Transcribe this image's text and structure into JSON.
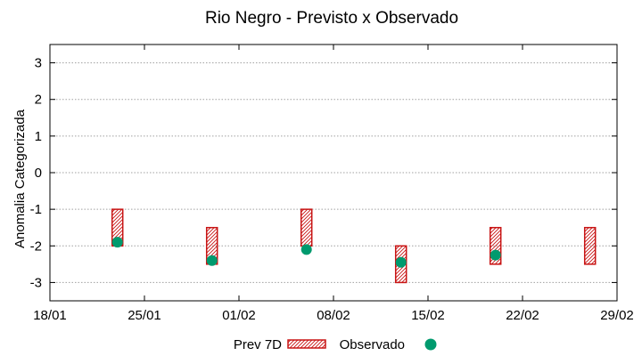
{
  "chart_data": {
    "type": "interval-scatter",
    "title": "Rio Negro - Previsto x Observado",
    "ylabel": "Anomalia Categorizada",
    "xlabel": "",
    "x_ticks": [
      "18/01",
      "25/01",
      "01/02",
      "08/02",
      "15/02",
      "22/02",
      "29/02"
    ],
    "x_range_days": [
      0,
      42
    ],
    "ylim": [
      -3.5,
      3.5
    ],
    "y_ticks": [
      "-3",
      "-2",
      "-1",
      "0",
      "1",
      "2",
      "3"
    ],
    "y_tick_values": [
      -3,
      -2,
      -1,
      0,
      1,
      2,
      3
    ],
    "grid": true,
    "legend": {
      "position": "bottom",
      "forecast_label": "Prev 7D",
      "observed_label": "Observado"
    },
    "series": [
      {
        "name": "Prev 7D",
        "kind": "interval",
        "points": [
          {
            "day": 5,
            "low": -2.0,
            "high": -1.0
          },
          {
            "day": 12,
            "low": -2.5,
            "high": -1.5
          },
          {
            "day": 19,
            "low": -2.0,
            "high": -1.0
          },
          {
            "day": 26,
            "low": -3.0,
            "high": -2.0
          },
          {
            "day": 33,
            "low": -2.5,
            "high": -1.5
          },
          {
            "day": 40,
            "low": -2.5,
            "high": -1.5
          }
        ]
      },
      {
        "name": "Observado",
        "kind": "point",
        "points": [
          {
            "day": 5,
            "value": -1.9
          },
          {
            "day": 12,
            "value": -2.4
          },
          {
            "day": 19,
            "value": -2.1
          },
          {
            "day": 26,
            "value": -2.45
          },
          {
            "day": 33,
            "value": -2.25
          }
        ]
      }
    ]
  },
  "colors": {
    "forecast": "#c81414",
    "observed": "#009a6e",
    "grid": "#a0a0a0",
    "axis": "#000000"
  }
}
